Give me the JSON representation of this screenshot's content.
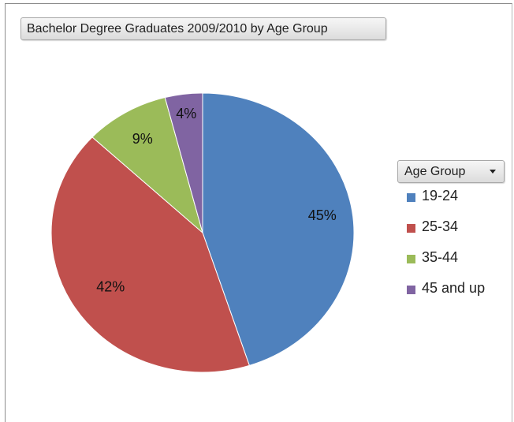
{
  "chart_data": {
    "type": "pie",
    "title": "Bachelor Degree Graduates 2009/2010 by Age Group",
    "legend_title": "Age Group",
    "legend_position": "right",
    "categories": [
      "19-24",
      "25-34",
      "35-44",
      "45 and up"
    ],
    "values": [
      45,
      42,
      9,
      4
    ],
    "labels": [
      "45%",
      "42%",
      "9%",
      "4%"
    ],
    "colors": [
      "#4f81bd",
      "#c0504d",
      "#9bbb59",
      "#8064a2"
    ]
  }
}
